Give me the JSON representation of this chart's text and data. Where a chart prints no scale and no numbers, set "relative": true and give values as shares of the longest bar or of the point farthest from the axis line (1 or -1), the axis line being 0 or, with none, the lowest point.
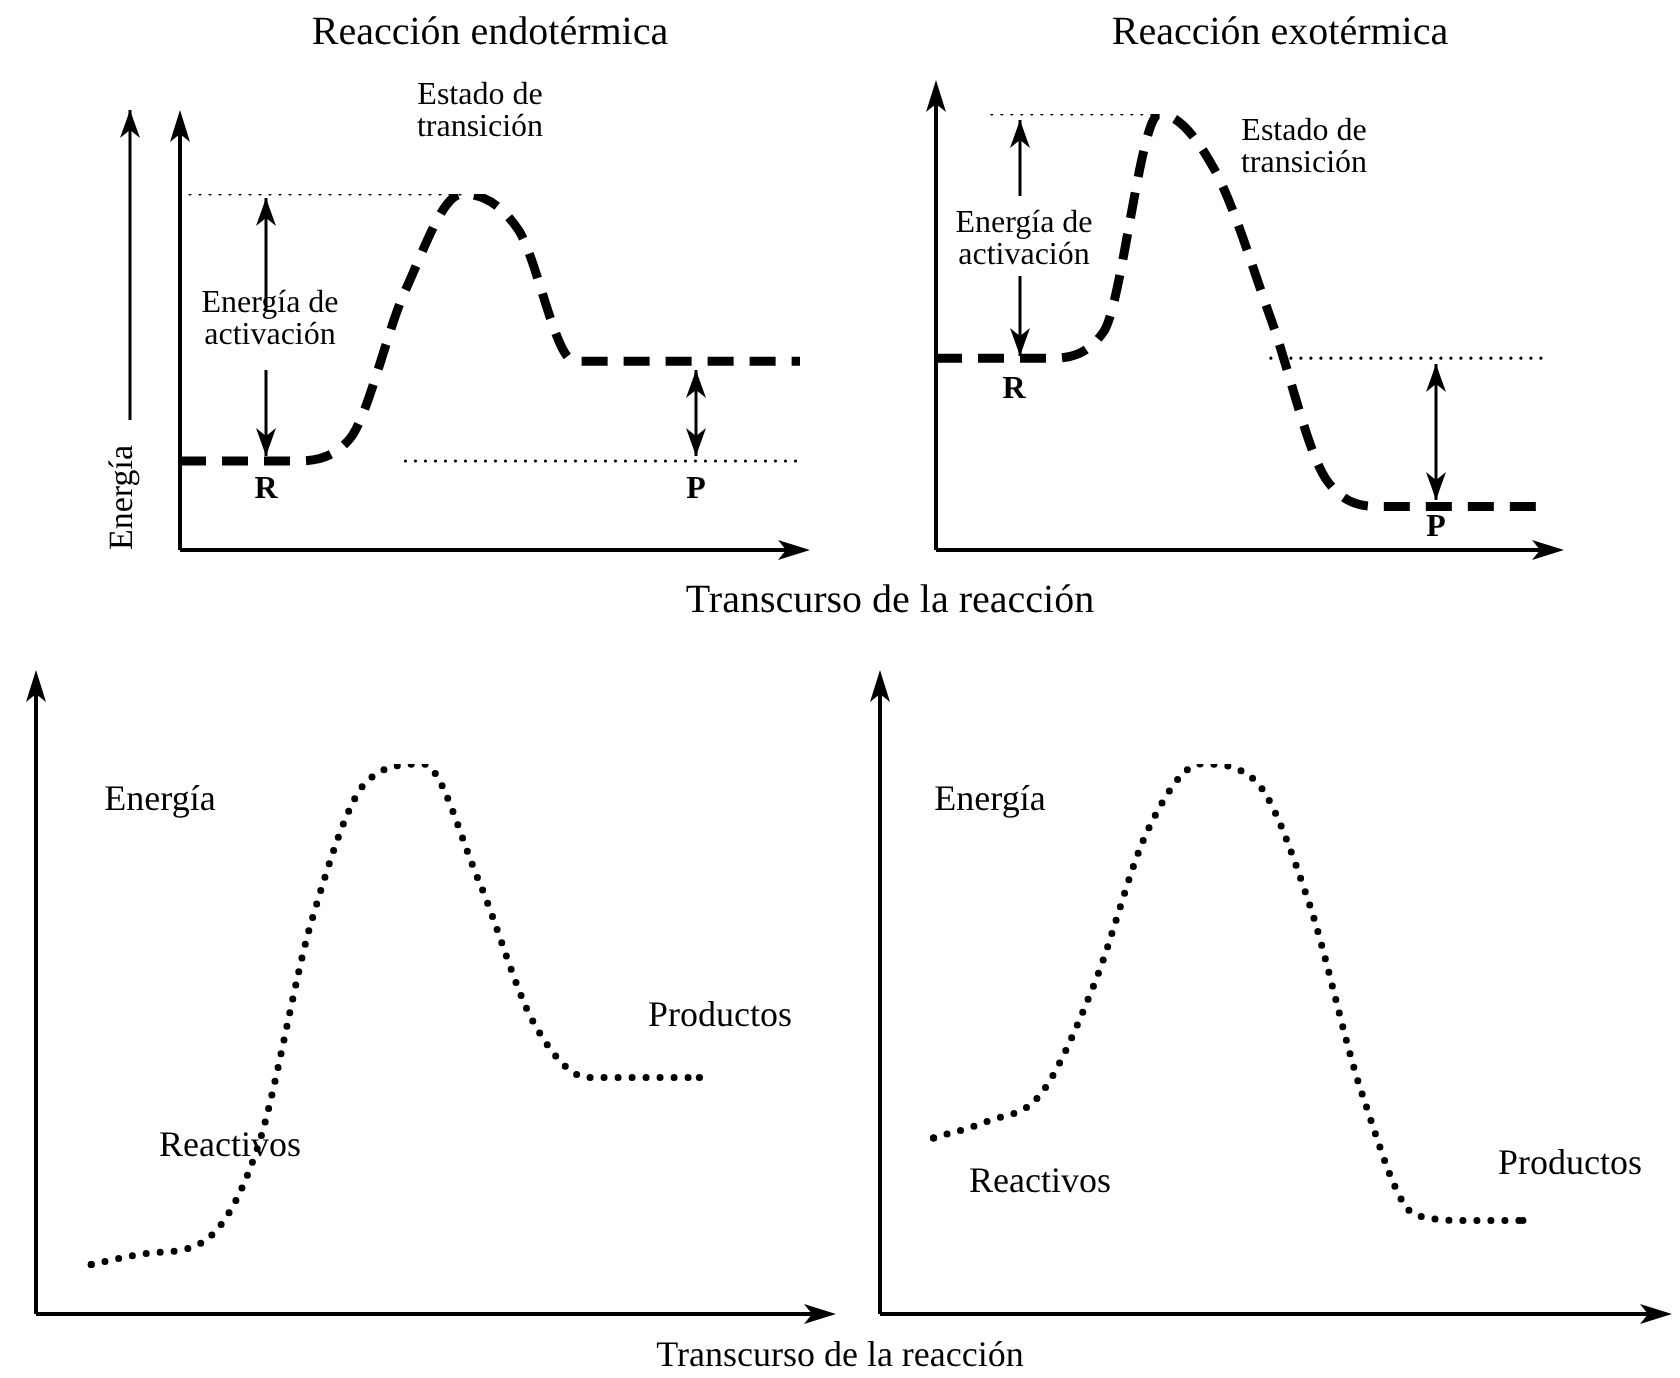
{
  "chart_data": [
    {
      "type": "line",
      "title": "Reacción endotérmica",
      "xlabel": "Transcurso de la reacción",
      "ylabel": "Energía",
      "relative": true,
      "tick_labels": false,
      "categories": [
        null,
        null,
        null,
        null,
        null,
        null,
        null,
        null,
        null,
        null,
        null,
        null
      ],
      "series": [
        {
          "type": "line",
          "color": "#000000",
          "line_style": "dashed",
          "values": [
            0.25,
            0.25,
            0.25,
            0.31,
            0.73,
            1,
            0.9,
            0.53,
            0.53,
            0.53,
            0.53,
            0.53
          ]
        },
        {
          "type": "line",
          "color": "#000000",
          "line_style": "dotted",
          "values": [
            1,
            1,
            1,
            1,
            1,
            1,
            null,
            null,
            null,
            null,
            null,
            null
          ]
        },
        {
          "type": "line",
          "color": "#000000",
          "line_style": "dotted",
          "values": [
            null,
            null,
            null,
            null,
            0.25,
            0.25,
            0.25,
            0.25,
            0.25,
            0.25,
            0.25,
            0.25
          ]
        }
      ],
      "annotations": [
        "Estado de transición",
        "Energía de activación",
        "R",
        "P"
      ]
    },
    {
      "type": "line",
      "title": "Reacción exotérmica",
      "relative": true,
      "tick_labels": false,
      "categories": [
        null,
        null,
        null,
        null,
        null,
        null,
        null,
        null,
        null,
        null,
        null,
        null
      ],
      "series": [
        {
          "type": "line",
          "color": "#000000",
          "line_style": "dashed",
          "values": [
            0.44,
            0.44,
            0.44,
            0.5,
            1,
            0.87,
            0.53,
            0.16,
            0.1,
            0.1,
            0.1,
            0.1
          ]
        },
        {
          "type": "line",
          "color": "#000000",
          "line_style": "dotted",
          "values": [
            null,
            1,
            1,
            1,
            1,
            null,
            null,
            null,
            null,
            null,
            null,
            null
          ]
        },
        {
          "type": "line",
          "color": "#000000",
          "line_style": "dotted",
          "values": [
            null,
            null,
            null,
            null,
            null,
            null,
            0.44,
            0.44,
            0.44,
            0.44,
            0.44,
            0.44
          ]
        }
      ],
      "annotations": [
        "Estado de transición",
        "Energía de activación",
        "R",
        "P"
      ]
    },
    {
      "type": "line",
      "xlabel": "Transcurso de la reacción",
      "ylabel": "Energía",
      "relative": true,
      "tick_labels": false,
      "categories": [
        null,
        null,
        null,
        null,
        null,
        null,
        null,
        null,
        null,
        null,
        null,
        null,
        null,
        null,
        null
      ],
      "series": [
        {
          "type": "line",
          "color": "#000000",
          "line_style": "dotted",
          "values": [
            null,
            0.09,
            0.11,
            0.13,
            0.3,
            0.72,
            0.97,
            1,
            0.79,
            0.53,
            0.43,
            0.43,
            0.43,
            null,
            null
          ]
        }
      ],
      "annotations": [
        "Productos",
        "Reactivos"
      ]
    },
    {
      "type": "line",
      "ylabel": "Energía",
      "relative": true,
      "tick_labels": false,
      "categories": [
        null,
        null,
        null,
        null,
        null,
        null,
        null,
        null,
        null,
        null,
        null,
        null,
        null,
        null,
        null
      ],
      "series": [
        {
          "type": "line",
          "color": "#000000",
          "line_style": "dotted",
          "values": [
            null,
            0.32,
            0.35,
            0.4,
            0.6,
            0.88,
            1,
            0.97,
            0.75,
            0.4,
            0.18,
            0.17,
            0.17,
            null,
            null
          ]
        }
      ],
      "annotations": [
        "Productos",
        "Reactivos"
      ]
    }
  ]
}
